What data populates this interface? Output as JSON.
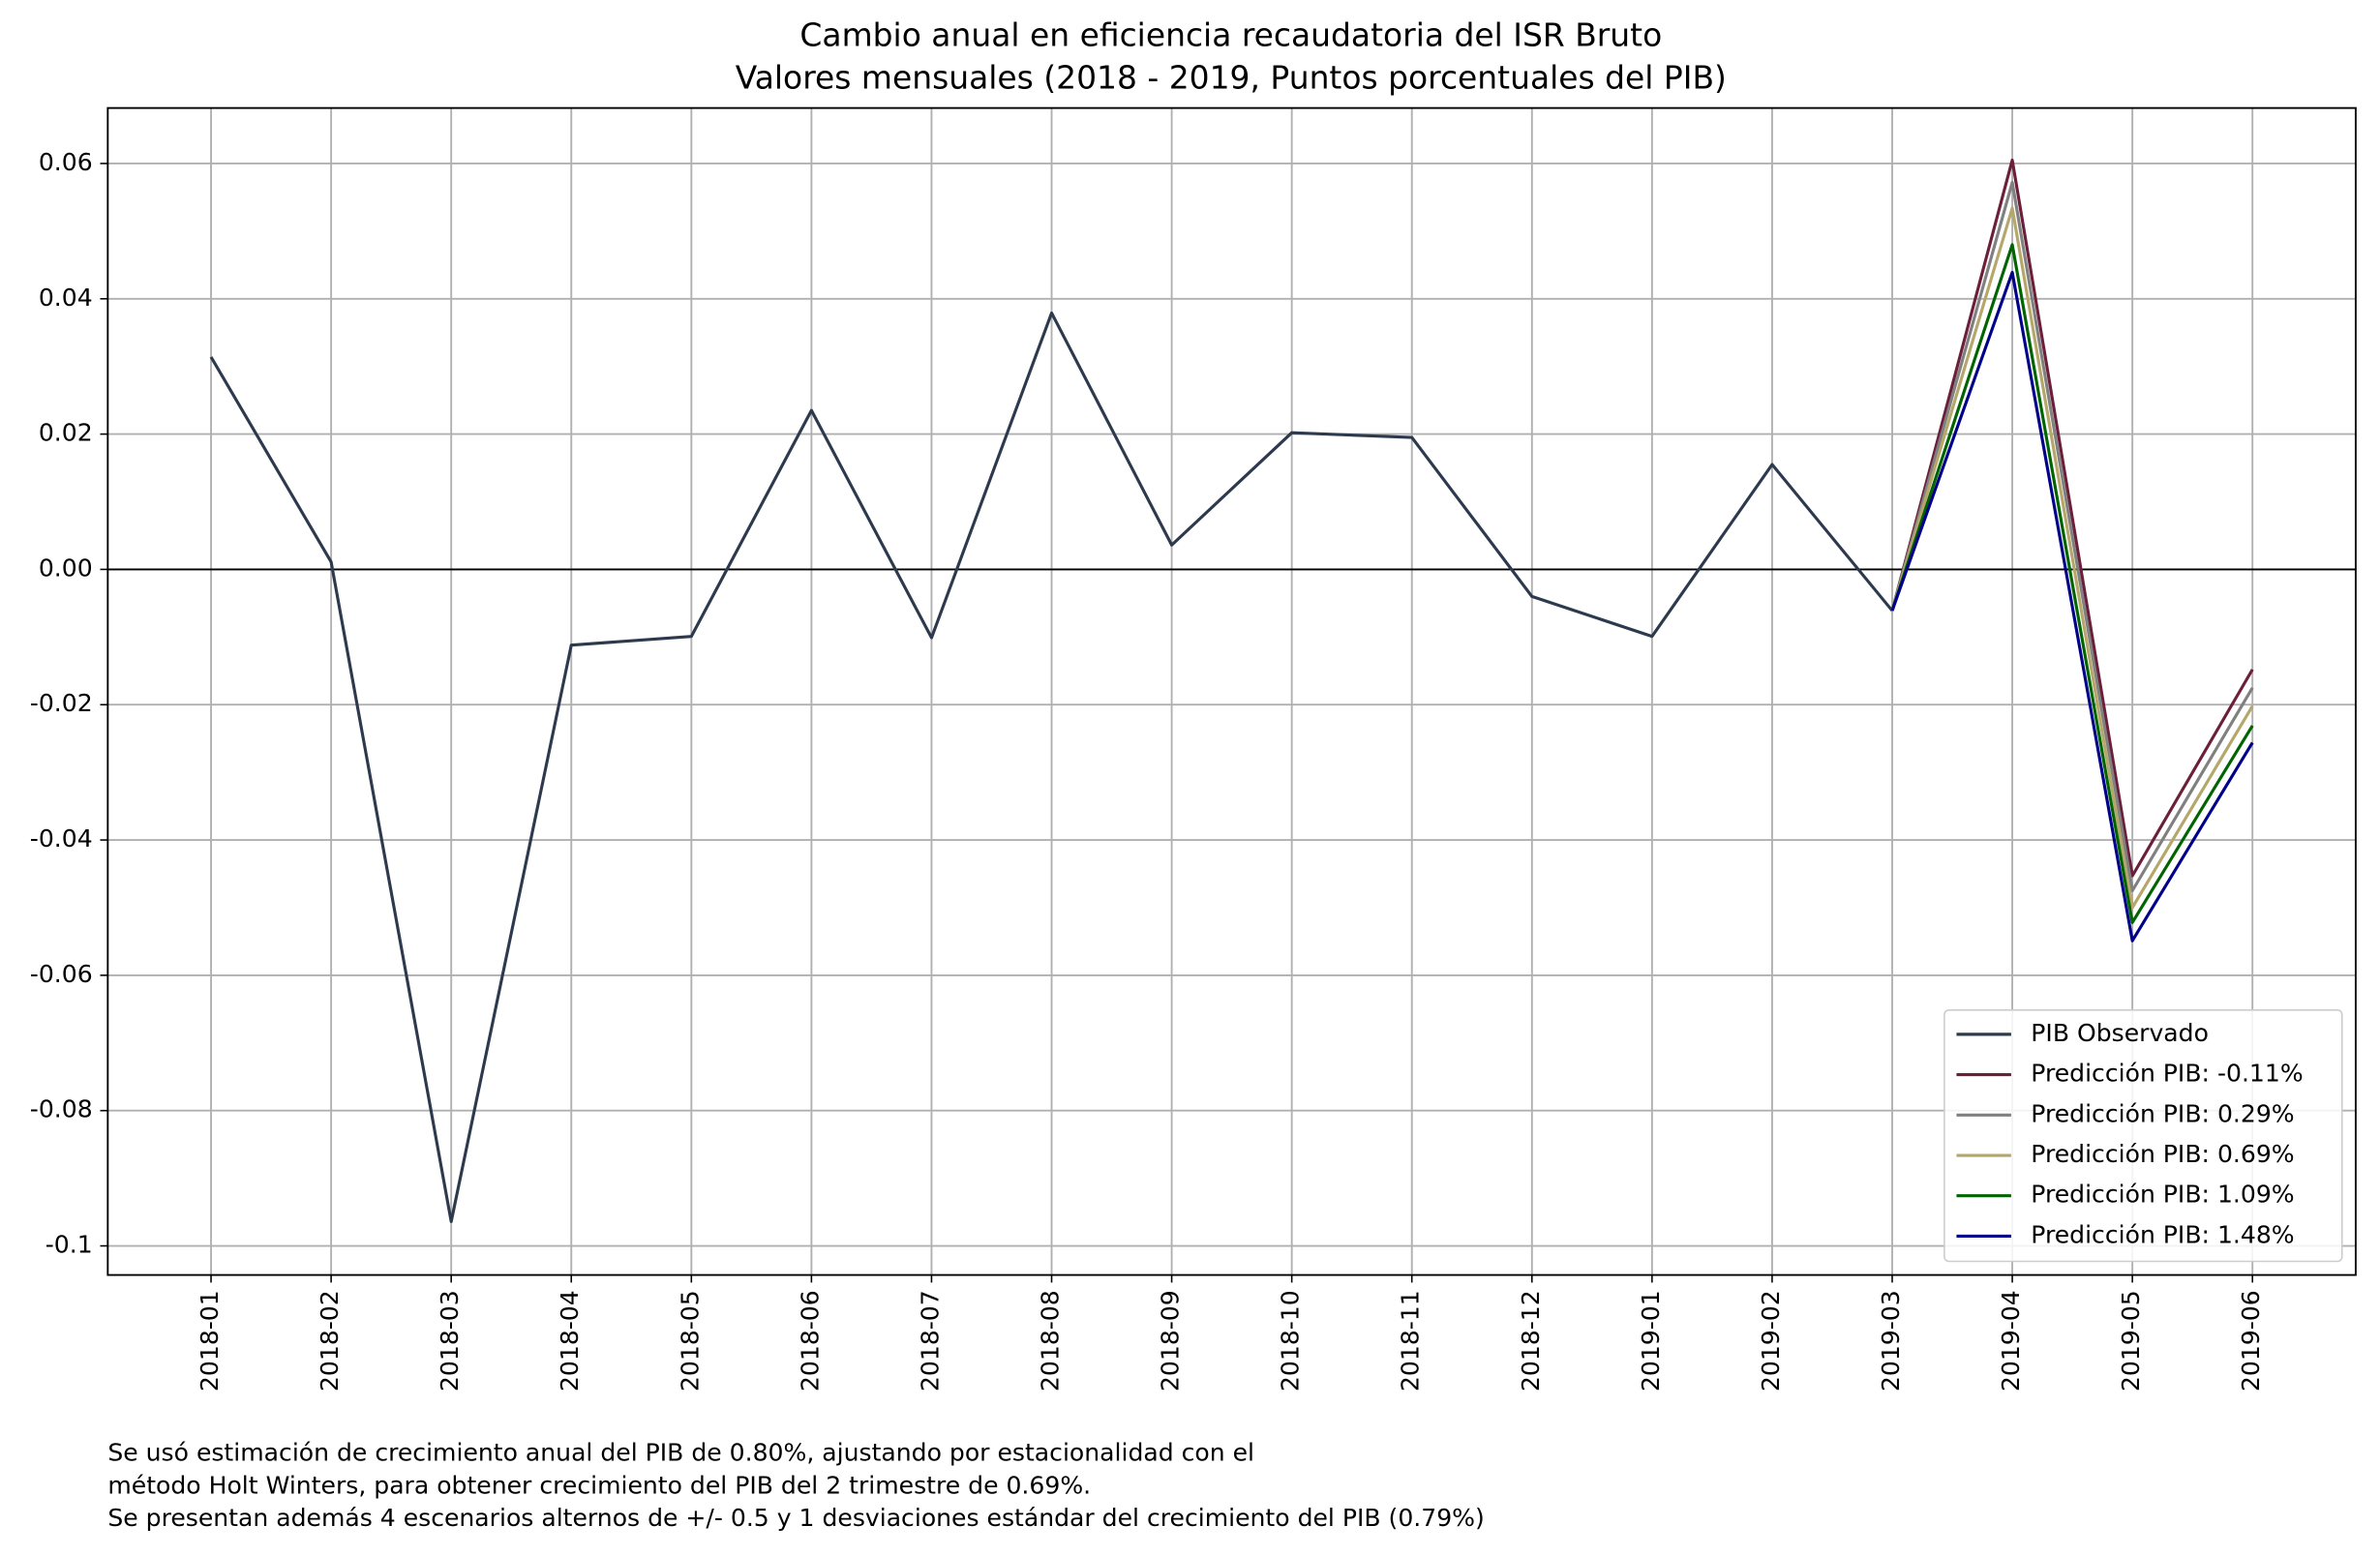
{
  "chart_data": {
    "type": "line",
    "title": "Cambio anual en eficiencia recaudatoria del ISR Bruto",
    "subtitle": "Valores mensuales (2018 - 2019, Puntos porcentuales del PIB)",
    "categories": [
      "2018-01",
      "2018-02",
      "2018-03",
      "2018-04",
      "2018-05",
      "2018-06",
      "2018-07",
      "2018-08",
      "2018-09",
      "2018-10",
      "2018-11",
      "2018-12",
      "2019-01",
      "2019-02",
      "2019-03",
      "2019-04",
      "2019-05",
      "2019-06"
    ],
    "series": [
      {
        "name": "PIB Observado",
        "color": "#2d3a4e",
        "values": [
          0.0314,
          0.0011,
          -0.0964,
          -0.0112,
          -0.0099,
          0.0235,
          -0.0101,
          0.0379,
          0.0036,
          0.0202,
          0.0195,
          -0.004,
          -0.0099,
          0.0155,
          -0.0061,
          null,
          null,
          null
        ]
      },
      {
        "name": "Predicción PIB: -0.11%",
        "color": "#6b1f3a",
        "values": [
          null,
          null,
          null,
          null,
          null,
          null,
          null,
          null,
          null,
          null,
          null,
          null,
          null,
          null,
          -0.0061,
          0.0605,
          -0.0453,
          -0.0148
        ]
      },
      {
        "name": "Predicción PIB: 0.29%",
        "color": "#808080",
        "values": [
          null,
          null,
          null,
          null,
          null,
          null,
          null,
          null,
          null,
          null,
          null,
          null,
          null,
          null,
          -0.0061,
          0.0572,
          -0.0475,
          -0.0175
        ]
      },
      {
        "name": "Predicción PIB: 0.69%",
        "color": "#b5a66a",
        "values": [
          null,
          null,
          null,
          null,
          null,
          null,
          null,
          null,
          null,
          null,
          null,
          null,
          null,
          null,
          -0.0061,
          0.0534,
          -0.05,
          -0.0202
        ]
      },
      {
        "name": "Predicción PIB: 1.09%",
        "color": "#006400",
        "values": [
          null,
          null,
          null,
          null,
          null,
          null,
          null,
          null,
          null,
          null,
          null,
          null,
          null,
          null,
          -0.0061,
          0.048,
          -0.0522,
          -0.0231
        ]
      },
      {
        "name": "Predicción PIB: 1.48%",
        "color": "#00008b",
        "values": [
          null,
          null,
          null,
          null,
          null,
          null,
          null,
          null,
          null,
          null,
          null,
          null,
          null,
          null,
          -0.0061,
          0.0439,
          -0.0549,
          -0.0256
        ]
      }
    ],
    "ylim": [
      -0.1043,
      0.0682
    ],
    "yticks": [
      -0.1,
      -0.08,
      -0.06,
      -0.04,
      -0.02,
      {
        "value": 0,
        "label": "0.00"
      },
      0.02,
      0.04,
      0.06
    ],
    "grid": true,
    "zero_line": true,
    "legend": "lower right",
    "footnote": [
      "Se usó estimación de crecimiento anual del PIB de 0.80%, ajustando por estacionalidad con el",
      "método Holt Winters, para obtener crecimiento del PIB del 2 trimestre de 0.69%.",
      "Se presentan además 4 escenarios alternos de  +/- 0.5 y 1 desviaciones estándar del crecimiento del PIB (0.79%)"
    ]
  }
}
